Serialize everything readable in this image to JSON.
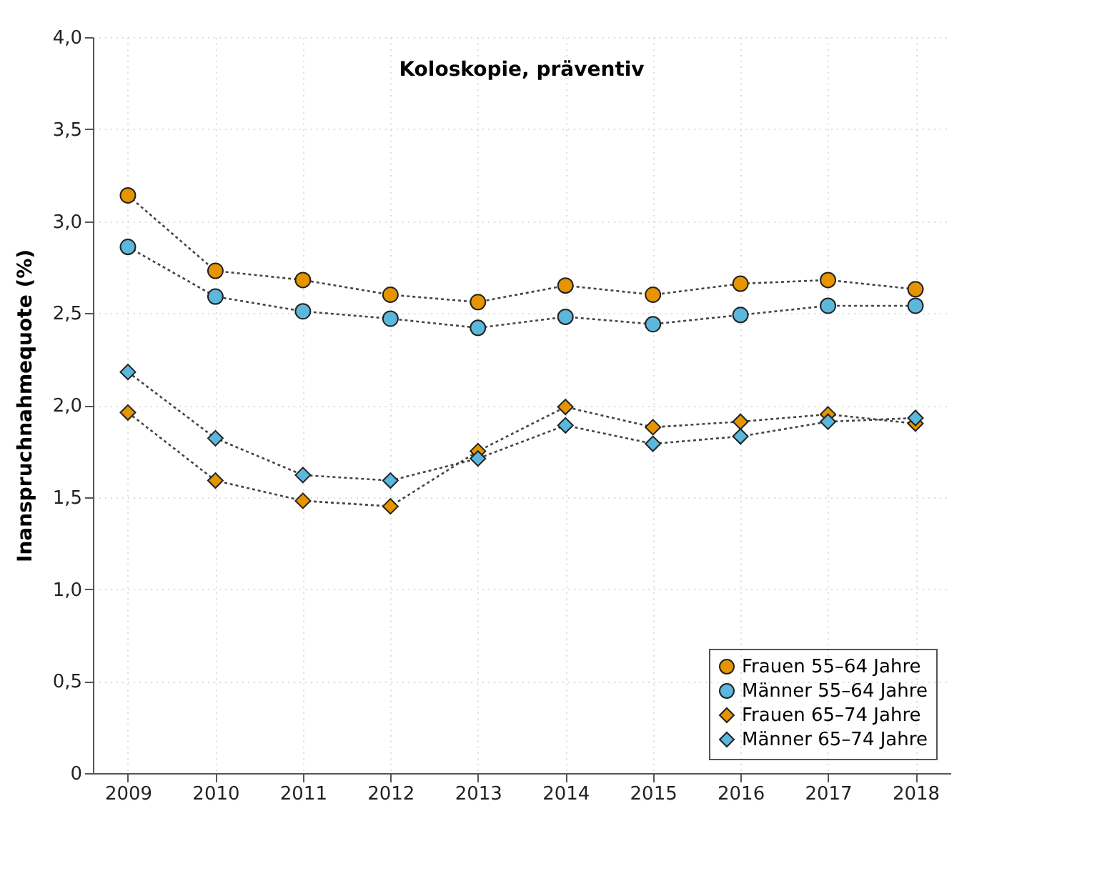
{
  "chart_data": {
    "type": "line",
    "title": "Koloskopie, präventiv",
    "ylabel": "Inanspruchnahmequote (%)",
    "categories": [
      "2009",
      "2010",
      "2011",
      "2012",
      "2013",
      "2014",
      "2015",
      "2016",
      "2017",
      "2018"
    ],
    "series": [
      {
        "name": "Frauen 55–64 Jahre",
        "color": "#e69500",
        "marker": "circle",
        "values": [
          3.14,
          2.73,
          2.68,
          2.6,
          2.56,
          2.65,
          2.6,
          2.66,
          2.68,
          2.63
        ]
      },
      {
        "name": "Männer 55–64 Jahre",
        "color": "#5bb8dc",
        "marker": "circle",
        "values": [
          2.86,
          2.59,
          2.51,
          2.47,
          2.42,
          2.48,
          2.44,
          2.49,
          2.54,
          2.54
        ]
      },
      {
        "name": "Frauen 65–74 Jahre",
        "color": "#e69500",
        "marker": "diamond",
        "values": [
          1.96,
          1.59,
          1.48,
          1.45,
          1.75,
          1.99,
          1.88,
          1.91,
          1.95,
          1.9
        ]
      },
      {
        "name": "Männer 65–74 Jahre",
        "color": "#5bb8dc",
        "marker": "diamond",
        "values": [
          2.18,
          1.82,
          1.62,
          1.59,
          1.71,
          1.89,
          1.79,
          1.83,
          1.91,
          1.93
        ]
      }
    ],
    "ylim": [
      0,
      4
    ],
    "yticks": [
      0,
      {
        "value": 0.5,
        "label": "0,5"
      },
      {
        "value": 1,
        "label": "1,0"
      },
      {
        "value": 1.5,
        "label": "1,5"
      },
      {
        "value": 2,
        "label": "2,0"
      },
      {
        "value": 2.5,
        "label": "2,5"
      },
      {
        "value": 3,
        "label": "3,0"
      },
      {
        "value": 3.5,
        "label": "3,5"
      },
      {
        "value": 4,
        "label": "4,0"
      }
    ],
    "grid": true,
    "legend": "bottom right",
    "line_style": "dotted"
  }
}
